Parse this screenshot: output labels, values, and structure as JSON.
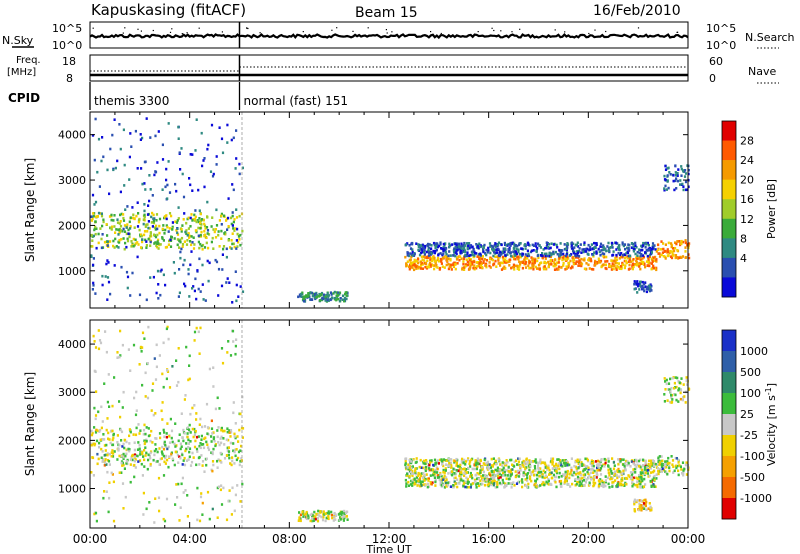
{
  "header": {
    "station": "Kapuskasing (fitACF)",
    "beam": "Beam 15",
    "date": "16/Feb/2010"
  },
  "strips": {
    "nsky_label": "N.Sky",
    "nsearch_label": "N.Search",
    "nsky_ticks": [
      "10^5",
      "10^0"
    ],
    "nsearch_ticks": [
      "10^5",
      "10^0"
    ],
    "freq_label_line1": "Freq.",
    "freq_label_line2": "[MHz]",
    "freq_ticks": [
      "18",
      "8"
    ],
    "nave_label": "Nave",
    "nave_ticks": [
      "60",
      "0"
    ],
    "cpid_label": "CPID",
    "cpid_segments": [
      {
        "label": "themis 3300",
        "start_hour": 0,
        "end_hour": 6
      },
      {
        "label": "normal (fast) 151",
        "start_hour": 6,
        "end_hour": 24
      }
    ]
  },
  "chart_data": [
    {
      "type": "heatmap",
      "name": "power",
      "ylabel": "Slant Range [km]",
      "xlabel": "",
      "xlim": [
        0,
        24
      ],
      "ylim": [
        180,
        4500
      ],
      "y_ticks": [
        1000,
        2000,
        3000,
        4000
      ],
      "colorbar_label": "Power [dB]",
      "colorbar_ticks": [
        "4",
        "8",
        "12",
        "16",
        "20",
        "24",
        "28"
      ],
      "colorbar_colors": [
        "#0a0ad8",
        "#2a4fb0",
        "#2f8a82",
        "#3aab3a",
        "#a0cc2a",
        "#f5d000",
        "#f59a00",
        "#ff5a00",
        "#e00000"
      ],
      "regions": [
        {
          "t0": 0.0,
          "t1": 6.1,
          "r0": 1500,
          "r1": 2300,
          "level": 4
        },
        {
          "t0": 0.0,
          "t1": 6.1,
          "r0": 300,
          "r1": 4400,
          "level": 1
        },
        {
          "t0": 8.3,
          "t1": 10.3,
          "r0": 350,
          "r1": 560,
          "level": 2
        },
        {
          "t0": 12.6,
          "t1": 22.7,
          "r0": 1050,
          "r1": 1350,
          "level": 6
        },
        {
          "t0": 12.6,
          "t1": 22.7,
          "r0": 1350,
          "r1": 1650,
          "level": 1
        },
        {
          "t0": 22.7,
          "t1": 24.0,
          "r0": 1300,
          "r1": 1700,
          "level": 6
        },
        {
          "t0": 21.8,
          "t1": 22.5,
          "r0": 550,
          "r1": 800,
          "level": 1
        },
        {
          "t0": 23.0,
          "t1": 24.0,
          "r0": 2800,
          "r1": 3350,
          "level": 1
        }
      ]
    },
    {
      "type": "heatmap",
      "name": "velocity",
      "ylabel": "Slant Range [km]",
      "xlabel": "Time UT",
      "xlim": [
        0,
        24
      ],
      "ylim": [
        180,
        4500
      ],
      "x_ticks": [
        "00:00",
        "04:00",
        "08:00",
        "12:00",
        "16:00",
        "20:00",
        "00:00"
      ],
      "y_ticks": [
        1000,
        2000,
        3000,
        4000
      ],
      "colorbar_label": "Velocity [m s",
      "colorbar_label_sup": "-1",
      "colorbar_label_end": "]",
      "colorbar_ticks": [
        "1000",
        "500",
        "100",
        "25",
        "-25",
        "-100",
        "-500",
        "-1000"
      ],
      "colorbar_colors": [
        "#1a30c8",
        "#2f5fa8",
        "#2f8a6a",
        "#3cbc3c",
        "#c8c8c8",
        "#f0d000",
        "#f5a000",
        "#f56a00",
        "#e00000"
      ],
      "regions": [
        {
          "t0": 0.0,
          "t1": 6.1,
          "r0": 1500,
          "r1": 2300,
          "level": 4
        },
        {
          "t0": 0.0,
          "t1": 6.1,
          "r0": 300,
          "r1": 4400,
          "level": 4
        },
        {
          "t0": 8.3,
          "t1": 10.3,
          "r0": 350,
          "r1": 560,
          "level": 4
        },
        {
          "t0": 12.6,
          "t1": 22.7,
          "r0": 1050,
          "r1": 1350,
          "level": 4
        },
        {
          "t0": 12.6,
          "t1": 22.7,
          "r0": 1350,
          "r1": 1650,
          "level": 4
        },
        {
          "t0": 22.7,
          "t1": 24.0,
          "r0": 1300,
          "r1": 1700,
          "level": 4
        },
        {
          "t0": 21.8,
          "t1": 22.5,
          "r0": 550,
          "r1": 800,
          "level": 5
        },
        {
          "t0": 23.0,
          "t1": 24.0,
          "r0": 2800,
          "r1": 3350,
          "level": 4
        }
      ]
    }
  ]
}
